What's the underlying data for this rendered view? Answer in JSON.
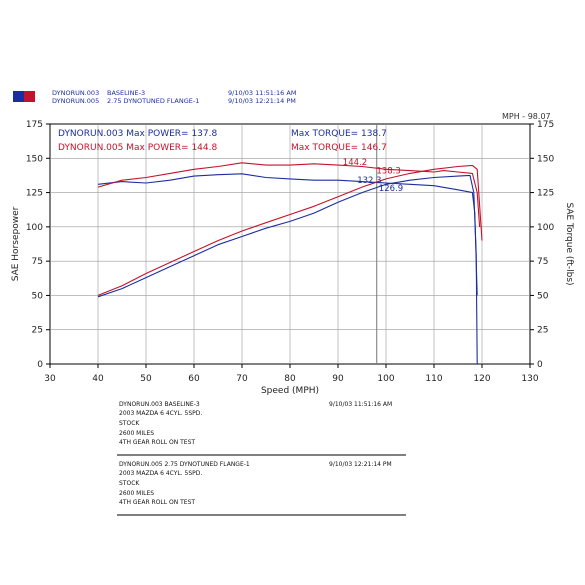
{
  "header": {
    "runs": [
      {
        "name": "DYNORUN.003",
        "desc": "BASELINE-3",
        "time": "9/10/03 11:51:16 AM",
        "color": "#1b2ea0"
      },
      {
        "name": "DYNORUN.005",
        "desc": "2.75 DYNOTUNED FLANGE-1",
        "time": "9/10/03 12:21:14 PM",
        "color": "#c4122a"
      }
    ]
  },
  "mph_readout": "MPH - 98.07",
  "chart_data": {
    "type": "line",
    "xlabel": "Speed (MPH)",
    "ylabel": "SAE Horsepower",
    "y2label": "SAE Torque (ft-lbs)",
    "xlim": [
      30,
      130
    ],
    "ylim": [
      0,
      175
    ],
    "y2lim": [
      0,
      175
    ],
    "x_ticks": [
      30,
      40,
      50,
      60,
      70,
      80,
      90,
      100,
      110,
      120,
      130
    ],
    "y_ticks": [
      0,
      25,
      50,
      75,
      100,
      125,
      150,
      175
    ],
    "grid": true,
    "cursor_x": 98.07,
    "legend": [
      {
        "label": "DYNORUN.003  Max POWER= 137.8",
        "color": "#1b2ea0"
      },
      {
        "label": "Max TORQUE= 138.7",
        "color": "#1b2ea0"
      },
      {
        "label": "DYNORUN.005  Max POWER= 144.8",
        "color": "#c4122a"
      },
      {
        "label": "Max TORQUE= 146.7",
        "color": "#c4122a"
      }
    ],
    "annotations": [
      {
        "text": "144.2",
        "x": 91,
        "y": 145,
        "color": "#c4122a"
      },
      {
        "text": "138.3",
        "x": 98,
        "y": 139,
        "color": "#c4122a"
      },
      {
        "text": "132.3",
        "x": 94,
        "y": 132,
        "color": "#1b2ea0"
      },
      {
        "text": "126.9",
        "x": 98.5,
        "y": 126,
        "color": "#1b2ea0"
      }
    ],
    "series": [
      {
        "name": "DYNORUN.003 Power",
        "color": "#1b2ea0",
        "points": [
          [
            40,
            49
          ],
          [
            45,
            55
          ],
          [
            50,
            63
          ],
          [
            55,
            71
          ],
          [
            60,
            79
          ],
          [
            65,
            87
          ],
          [
            70,
            93
          ],
          [
            75,
            99
          ],
          [
            80,
            104
          ],
          [
            85,
            110
          ],
          [
            90,
            118
          ],
          [
            95,
            125
          ],
          [
            100,
            131
          ],
          [
            105,
            134
          ],
          [
            110,
            136
          ],
          [
            115,
            137
          ],
          [
            117.5,
            137.5
          ],
          [
            118.3,
            125
          ],
          [
            118.8,
            80
          ],
          [
            119,
            0
          ]
        ]
      },
      {
        "name": "DYNORUN.003 Torque",
        "color": "#1b2ea0",
        "points": [
          [
            40,
            131
          ],
          [
            45,
            133
          ],
          [
            50,
            132
          ],
          [
            55,
            134
          ],
          [
            60,
            137
          ],
          [
            65,
            138
          ],
          [
            70,
            138.7
          ],
          [
            75,
            136
          ],
          [
            80,
            135
          ],
          [
            85,
            134
          ],
          [
            90,
            134
          ],
          [
            95,
            133
          ],
          [
            100,
            132
          ],
          [
            105,
            131
          ],
          [
            110,
            130
          ],
          [
            115,
            127
          ],
          [
            118,
            125
          ],
          [
            118.5,
            110
          ],
          [
            119,
            50
          ]
        ]
      },
      {
        "name": "DYNORUN.005 Power",
        "color": "#c4122a",
        "points": [
          [
            40,
            50
          ],
          [
            45,
            57
          ],
          [
            50,
            66
          ],
          [
            55,
            74
          ],
          [
            60,
            82
          ],
          [
            65,
            90
          ],
          [
            70,
            97
          ],
          [
            75,
            103
          ],
          [
            80,
            109
          ],
          [
            85,
            115
          ],
          [
            90,
            122
          ],
          [
            95,
            129
          ],
          [
            100,
            135
          ],
          [
            105,
            139
          ],
          [
            110,
            142
          ],
          [
            115,
            144
          ],
          [
            118,
            144.8
          ],
          [
            119,
            142
          ],
          [
            120,
            90
          ]
        ]
      },
      {
        "name": "DYNORUN.005 Torque",
        "color": "#c4122a",
        "points": [
          [
            40,
            129
          ],
          [
            45,
            134
          ],
          [
            50,
            136
          ],
          [
            55,
            139
          ],
          [
            60,
            142
          ],
          [
            65,
            144
          ],
          [
            70,
            146.7
          ],
          [
            75,
            145
          ],
          [
            80,
            145
          ],
          [
            85,
            146
          ],
          [
            90,
            145
          ],
          [
            95,
            144
          ],
          [
            100,
            142
          ],
          [
            105,
            141
          ],
          [
            110,
            140
          ],
          [
            112,
            141
          ],
          [
            115,
            140
          ],
          [
            118,
            139
          ],
          [
            119,
            125
          ],
          [
            119.5,
            100
          ]
        ]
      }
    ]
  },
  "notes": [
    {
      "title": "DYNORUN.003   BASELINE-3",
      "time": "9/10/03 11:51:16 AM",
      "lines": [
        "2003 MAZDA 6 4CYL. 5SPD.",
        "STOCK",
        "2600 MILES",
        "4TH GEAR ROLL ON TEST"
      ]
    },
    {
      "title": "DYNORUN.005   2.75 DYNOTUNED FLANGE-1",
      "time": "9/10/03 12:21:14 PM",
      "lines": [
        "2003 MAZDA 6 4CYL. 5SPD.",
        "STOCK",
        "2600 MILES",
        "4TH GEAR ROLL ON TEST"
      ]
    }
  ]
}
